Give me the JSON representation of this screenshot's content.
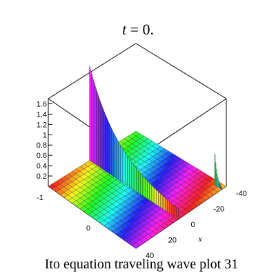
{
  "chart_data": {
    "type": "surface3d",
    "title": "t = 0.",
    "caption": "Ito equation  traveling wave plot 31",
    "x_axis": {
      "label": "x",
      "ticks": [
        "-40",
        "-20",
        "0",
        "20",
        "40"
      ],
      "range": [
        -40,
        40
      ]
    },
    "y_axis": {
      "ticks": [
        "-1",
        "0"
      ]
    },
    "z_axis": {
      "ticks": [
        "0.2",
        "0.4",
        "0.6",
        "0.8",
        "1",
        "1.2",
        "1.4",
        "1.6"
      ],
      "range": [
        0,
        1.7
      ]
    },
    "surface": {
      "shape": "traveling wave with a sharp ridge near x = 0 and decaying ripples",
      "peak_value": 1.7,
      "colormap": "rainbow (hue by height/position)"
    },
    "box": "outlined"
  }
}
